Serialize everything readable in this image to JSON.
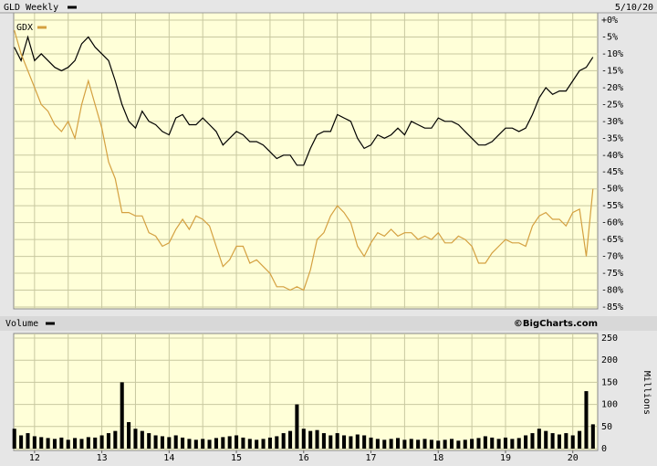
{
  "chart_data": [
    {
      "type": "line",
      "date": "5/10/20",
      "x": [
        2011.7,
        2011.8,
        2011.9,
        2012.0,
        2012.1,
        2012.2,
        2012.3,
        2012.4,
        2012.5,
        2012.6,
        2012.7,
        2012.8,
        2012.9,
        2013.0,
        2013.1,
        2013.2,
        2013.3,
        2013.4,
        2013.5,
        2013.6,
        2013.7,
        2013.8,
        2013.9,
        2014.0,
        2014.1,
        2014.2,
        2014.3,
        2014.4,
        2014.5,
        2014.6,
        2014.7,
        2014.8,
        2014.9,
        2015.0,
        2015.1,
        2015.2,
        2015.3,
        2015.4,
        2015.5,
        2015.6,
        2015.7,
        2015.8,
        2015.9,
        2016.0,
        2016.1,
        2016.2,
        2016.3,
        2016.4,
        2016.5,
        2016.6,
        2016.7,
        2016.8,
        2016.9,
        2017.0,
        2017.1,
        2017.2,
        2017.3,
        2017.4,
        2017.5,
        2017.6,
        2017.7,
        2017.8,
        2017.9,
        2018.0,
        2018.1,
        2018.2,
        2018.3,
        2018.4,
        2018.5,
        2018.6,
        2018.7,
        2018.8,
        2018.9,
        2019.0,
        2019.1,
        2019.2,
        2019.3,
        2019.4,
        2019.5,
        2019.6,
        2019.7,
        2019.8,
        2019.9,
        2020.0,
        2020.1,
        2020.2,
        2020.3
      ],
      "series": [
        {
          "name": "GLD Weekly",
          "color": "#000000",
          "values": [
            -8,
            -12,
            -5,
            -12,
            -10,
            -12,
            -14,
            -15,
            -14,
            -12,
            -7,
            -5,
            -8,
            -10,
            -12,
            -18,
            -25,
            -30,
            -32,
            -27,
            -30,
            -31,
            -33,
            -34,
            -29,
            -28,
            -31,
            -31,
            -29,
            -31,
            -33,
            -37,
            -35,
            -33,
            -34,
            -36,
            -36,
            -37,
            -39,
            -41,
            -40,
            -40,
            -43,
            -43,
            -38,
            -34,
            -33,
            -33,
            -28,
            -29,
            -30,
            -35,
            -38,
            -37,
            -34,
            -35,
            -34,
            -32,
            -34,
            -30,
            -31,
            -32,
            -32,
            -29,
            -30,
            -30,
            -31,
            -33,
            -35,
            -37,
            -37,
            -36,
            -34,
            -32,
            -32,
            -33,
            -32,
            -28,
            -23,
            -20,
            -22,
            -21,
            -21,
            -18,
            -15,
            -14,
            -11
          ]
        },
        {
          "name": "GDX",
          "color": "#d4a040",
          "values": [
            -3,
            -10,
            -15,
            -20,
            -25,
            -27,
            -31,
            -33,
            -30,
            -35,
            -25,
            -18,
            -25,
            -32,
            -42,
            -47,
            -57,
            -57,
            -58,
            -58,
            -63,
            -64,
            -67,
            -66,
            -62,
            -59,
            -62,
            -58,
            -59,
            -61,
            -67,
            -73,
            -71,
            -67,
            -67,
            -72,
            -71,
            -73,
            -75,
            -79,
            -79,
            -80,
            -79,
            -80,
            -74,
            -65,
            -63,
            -58,
            -55,
            -57,
            -60,
            -67,
            -70,
            -66,
            -63,
            -64,
            -62,
            -64,
            -63,
            -63,
            -65,
            -64,
            -65,
            -63,
            -66,
            -66,
            -64,
            -65,
            -67,
            -72,
            -72,
            -69,
            -67,
            -65,
            -66,
            -66,
            -67,
            -61,
            -58,
            -57,
            -59,
            -59,
            -61,
            -57,
            -56,
            -70,
            -50
          ]
        }
      ],
      "xlim": [
        2011.69,
        2020.37
      ],
      "xgrid": [
        2012,
        2012.5,
        2013,
        2013.5,
        2014,
        2014.5,
        2015,
        2015.5,
        2016,
        2016.5,
        2017,
        2017.5,
        2018,
        2018.5,
        2019,
        2019.5,
        2020
      ],
      "ylim": [
        -85,
        0
      ],
      "yticks": [
        {
          "value": 0,
          "label": "+0%"
        },
        {
          "value": -5,
          "label": "-5%"
        },
        {
          "value": -10,
          "label": "-10%"
        },
        {
          "value": -15,
          "label": "-15%"
        },
        {
          "value": -20,
          "label": "-20%"
        },
        {
          "value": -25,
          "label": "-25%"
        },
        {
          "value": -30,
          "label": "-30%"
        },
        {
          "value": -35,
          "label": "-35%"
        },
        {
          "value": -40,
          "label": "-40%"
        },
        {
          "value": -45,
          "label": "-45%"
        },
        {
          "value": -50,
          "label": "-50%"
        },
        {
          "value": -55,
          "label": "-55%"
        },
        {
          "value": -60,
          "label": "-60%"
        },
        {
          "value": -65,
          "label": "-65%"
        },
        {
          "value": -70,
          "label": "-70%"
        },
        {
          "value": -75,
          "label": "-75%"
        },
        {
          "value": -80,
          "label": "-80%"
        },
        {
          "value": -85,
          "label": "-85%"
        }
      ]
    },
    {
      "type": "bar",
      "credit": "©BigCharts.com",
      "y_label": "Millions",
      "x": [
        2011.7,
        2011.8,
        2011.9,
        2012.0,
        2012.1,
        2012.2,
        2012.3,
        2012.4,
        2012.5,
        2012.6,
        2012.7,
        2012.8,
        2012.9,
        2013.0,
        2013.1,
        2013.2,
        2013.3,
        2013.4,
        2013.5,
        2013.6,
        2013.7,
        2013.8,
        2013.9,
        2014.0,
        2014.1,
        2014.2,
        2014.3,
        2014.4,
        2014.5,
        2014.6,
        2014.7,
        2014.8,
        2014.9,
        2015.0,
        2015.1,
        2015.2,
        2015.3,
        2015.4,
        2015.5,
        2015.6,
        2015.7,
        2015.8,
        2015.9,
        2016.0,
        2016.1,
        2016.2,
        2016.3,
        2016.4,
        2016.5,
        2016.6,
        2016.7,
        2016.8,
        2016.9,
        2017.0,
        2017.1,
        2017.2,
        2017.3,
        2017.4,
        2017.5,
        2017.6,
        2017.7,
        2017.8,
        2017.9,
        2018.0,
        2018.1,
        2018.2,
        2018.3,
        2018.4,
        2018.5,
        2018.6,
        2018.7,
        2018.8,
        2018.9,
        2019.0,
        2019.1,
        2019.2,
        2019.3,
        2019.4,
        2019.5,
        2019.6,
        2019.7,
        2019.8,
        2019.9,
        2020.0,
        2020.1,
        2020.2,
        2020.3
      ],
      "series": [
        {
          "name": "Volume",
          "color": "#000000",
          "values": [
            45,
            30,
            35,
            28,
            26,
            24,
            22,
            25,
            20,
            24,
            22,
            26,
            25,
            30,
            35,
            40,
            150,
            60,
            45,
            40,
            35,
            30,
            28,
            26,
            30,
            25,
            22,
            20,
            22,
            20,
            24,
            26,
            28,
            30,
            25,
            22,
            20,
            22,
            25,
            28,
            35,
            40,
            100,
            45,
            40,
            42,
            35,
            30,
            35,
            30,
            28,
            32,
            30,
            25,
            22,
            20,
            22,
            24,
            20,
            22,
            20,
            22,
            20,
            18,
            20,
            22,
            18,
            20,
            22,
            24,
            28,
            25,
            22,
            25,
            22,
            24,
            30,
            35,
            45,
            40,
            35,
            32,
            35,
            30,
            40,
            130,
            55
          ]
        }
      ],
      "xlim": [
        2011.69,
        2020.37
      ],
      "xgrid": [
        2012,
        2012.5,
        2013,
        2013.5,
        2014,
        2014.5,
        2015,
        2015.5,
        2016,
        2016.5,
        2017,
        2017.5,
        2018,
        2018.5,
        2019,
        2019.5,
        2020
      ],
      "xticks": [
        {
          "value": 2012,
          "label": "12"
        },
        {
          "value": 2013,
          "label": "13"
        },
        {
          "value": 2014,
          "label": "14"
        },
        {
          "value": 2015,
          "label": "15"
        },
        {
          "value": 2016,
          "label": "16"
        },
        {
          "value": 2017,
          "label": "17"
        },
        {
          "value": 2018,
          "label": "18"
        },
        {
          "value": 2019,
          "label": "19"
        },
        {
          "value": 2020,
          "label": "20"
        }
      ],
      "ylim": [
        0,
        250
      ],
      "yticks": [
        0,
        50,
        100,
        150,
        200,
        250
      ]
    }
  ]
}
